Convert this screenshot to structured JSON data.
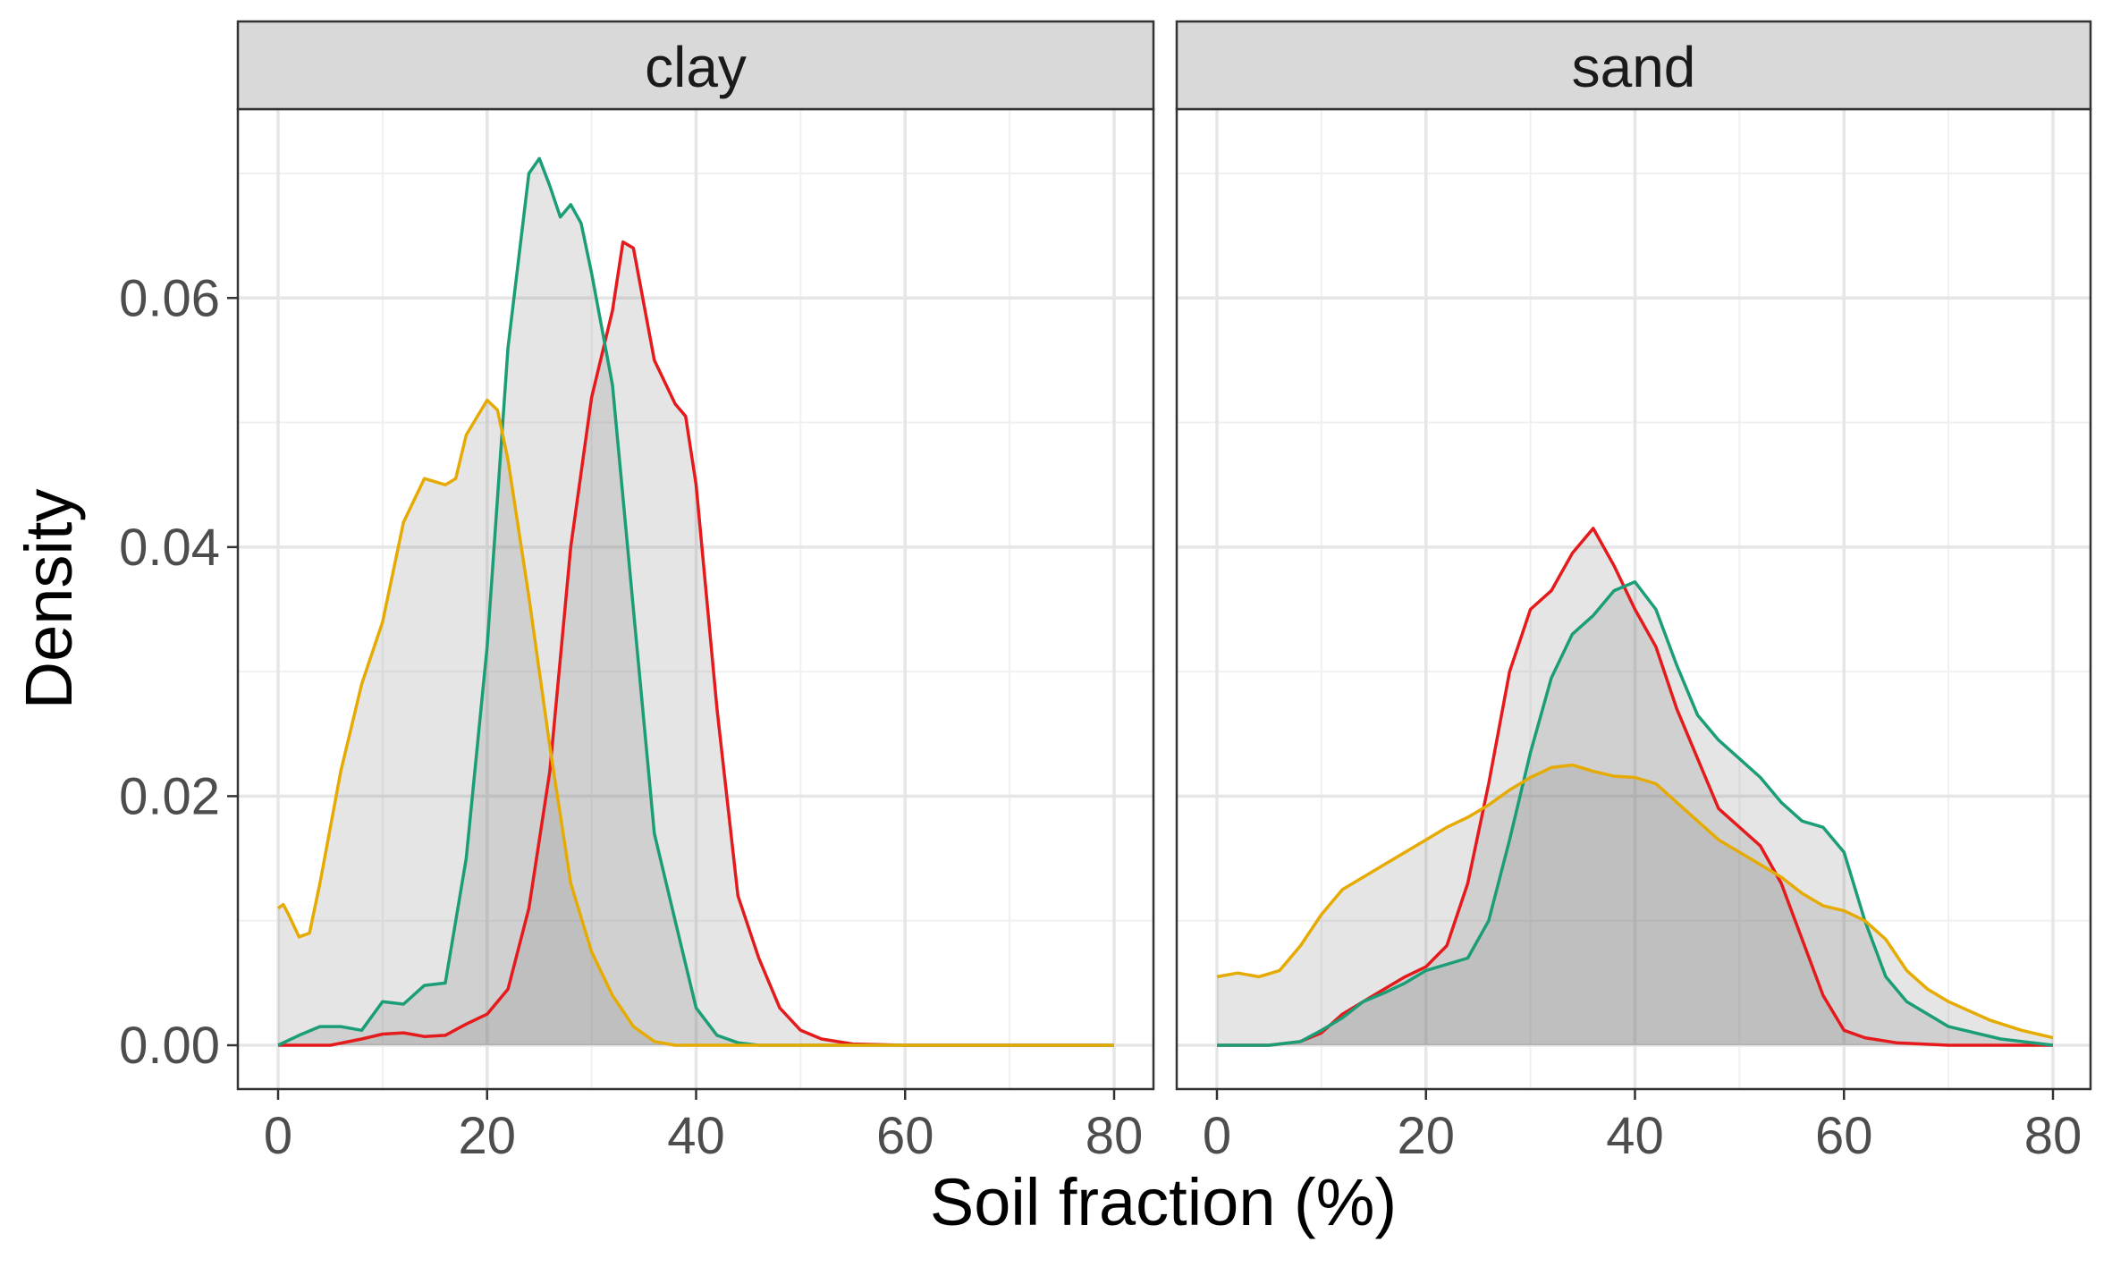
{
  "chart_data": {
    "type": "area",
    "xlabel": "Soil fraction (%)",
    "ylabel": "Density",
    "xlim": [
      0,
      80
    ],
    "ylim": [
      0,
      0.072
    ],
    "x_ticks": [
      0,
      20,
      40,
      60,
      80
    ],
    "x_tick_labels": [
      "0",
      "20",
      "40",
      "60",
      "80"
    ],
    "y_ticks": [
      0,
      0.02,
      0.04,
      0.06
    ],
    "y_tick_labels": [
      "0.00",
      "0.02",
      "0.04",
      "0.06"
    ],
    "grid": true,
    "legend": "none",
    "fill_color": "#7f7f7f",
    "fill_opacity": 0.2,
    "series_colors": [
      "#e41a1c",
      "#1b9e77",
      "#e6ab02"
    ],
    "panels": [
      {
        "strip_label": "clay",
        "series": [
          {
            "color": "#e41a1c",
            "points": [
              [
                0,
                0
              ],
              [
                5,
                0
              ],
              [
                8,
                0.0005
              ],
              [
                10,
                0.0009
              ],
              [
                12,
                0.001
              ],
              [
                14,
                0.0007
              ],
              [
                16,
                0.0008
              ],
              [
                18,
                0.0017
              ],
              [
                20,
                0.0025
              ],
              [
                22,
                0.0045
              ],
              [
                24,
                0.011
              ],
              [
                26,
                0.022
              ],
              [
                28,
                0.04
              ],
              [
                30,
                0.052
              ],
              [
                32,
                0.059
              ],
              [
                33,
                0.0645
              ],
              [
                34,
                0.064
              ],
              [
                36,
                0.055
              ],
              [
                38,
                0.0515
              ],
              [
                39,
                0.0505
              ],
              [
                40,
                0.045
              ],
              [
                42,
                0.027
              ],
              [
                44,
                0.012
              ],
              [
                46,
                0.007
              ],
              [
                48,
                0.003
              ],
              [
                50,
                0.0012
              ],
              [
                52,
                0.0005
              ],
              [
                55,
                0.0001
              ],
              [
                60,
                0
              ],
              [
                80,
                0
              ]
            ]
          },
          {
            "color": "#1b9e77",
            "points": [
              [
                0,
                0
              ],
              [
                2,
                0.0008
              ],
              [
                4,
                0.0015
              ],
              [
                6,
                0.0015
              ],
              [
                8,
                0.0012
              ],
              [
                10,
                0.0035
              ],
              [
                12,
                0.0033
              ],
              [
                14,
                0.0048
              ],
              [
                16,
                0.005
              ],
              [
                18,
                0.015
              ],
              [
                20,
                0.032
              ],
              [
                22,
                0.056
              ],
              [
                24,
                0.07
              ],
              [
                25,
                0.0712
              ],
              [
                26,
                0.069
              ],
              [
                27,
                0.0665
              ],
              [
                28,
                0.0675
              ],
              [
                29,
                0.066
              ],
              [
                30,
                0.062
              ],
              [
                32,
                0.053
              ],
              [
                34,
                0.035
              ],
              [
                36,
                0.017
              ],
              [
                38,
                0.01
              ],
              [
                40,
                0.003
              ],
              [
                42,
                0.0008
              ],
              [
                44,
                0.0002
              ],
              [
                46,
                0
              ],
              [
                80,
                0
              ]
            ]
          },
          {
            "color": "#e6ab02",
            "points": [
              [
                0,
                0.011
              ],
              [
                0.5,
                0.0113
              ],
              [
                1,
                0.0105
              ],
              [
                2,
                0.0087
              ],
              [
                3,
                0.009
              ],
              [
                4,
                0.013
              ],
              [
                6,
                0.022
              ],
              [
                8,
                0.029
              ],
              [
                10,
                0.034
              ],
              [
                12,
                0.042
              ],
              [
                14,
                0.0455
              ],
              [
                16,
                0.045
              ],
              [
                17,
                0.0455
              ],
              [
                18,
                0.049
              ],
              [
                20,
                0.0518
              ],
              [
                21,
                0.051
              ],
              [
                22,
                0.047
              ],
              [
                24,
                0.036
              ],
              [
                26,
                0.024
              ],
              [
                28,
                0.013
              ],
              [
                30,
                0.0075
              ],
              [
                32,
                0.004
              ],
              [
                34,
                0.0015
              ],
              [
                36,
                0.0003
              ],
              [
                38,
                0
              ],
              [
                80,
                0
              ]
            ]
          }
        ]
      },
      {
        "strip_label": "sand",
        "series": [
          {
            "color": "#e41a1c",
            "points": [
              [
                0,
                0
              ],
              [
                5,
                0
              ],
              [
                8,
                0.0003
              ],
              [
                10,
                0.001
              ],
              [
                12,
                0.0025
              ],
              [
                14,
                0.0035
              ],
              [
                16,
                0.0045
              ],
              [
                18,
                0.0055
              ],
              [
                20,
                0.0063
              ],
              [
                22,
                0.008
              ],
              [
                24,
                0.013
              ],
              [
                26,
                0.021
              ],
              [
                28,
                0.03
              ],
              [
                30,
                0.035
              ],
              [
                32,
                0.0365
              ],
              [
                34,
                0.0395
              ],
              [
                36,
                0.0415
              ],
              [
                38,
                0.0385
              ],
              [
                40,
                0.035
              ],
              [
                42,
                0.032
              ],
              [
                44,
                0.027
              ],
              [
                46,
                0.023
              ],
              [
                48,
                0.019
              ],
              [
                50,
                0.0175
              ],
              [
                52,
                0.016
              ],
              [
                54,
                0.013
              ],
              [
                56,
                0.0085
              ],
              [
                58,
                0.004
              ],
              [
                60,
                0.0012
              ],
              [
                62,
                0.0006
              ],
              [
                65,
                0.0002
              ],
              [
                70,
                0
              ],
              [
                80,
                0
              ]
            ]
          },
          {
            "color": "#1b9e77",
            "points": [
              [
                0,
                0
              ],
              [
                5,
                0
              ],
              [
                8,
                0.0003
              ],
              [
                10,
                0.0012
              ],
              [
                12,
                0.0022
              ],
              [
                14,
                0.0035
              ],
              [
                16,
                0.0042
              ],
              [
                18,
                0.005
              ],
              [
                20,
                0.006
              ],
              [
                22,
                0.0065
              ],
              [
                24,
                0.007
              ],
              [
                26,
                0.01
              ],
              [
                28,
                0.0165
              ],
              [
                30,
                0.0235
              ],
              [
                32,
                0.0295
              ],
              [
                34,
                0.033
              ],
              [
                36,
                0.0345
              ],
              [
                38,
                0.0365
              ],
              [
                40,
                0.0372
              ],
              [
                42,
                0.035
              ],
              [
                44,
                0.0305
              ],
              [
                46,
                0.0265
              ],
              [
                48,
                0.0245
              ],
              [
                50,
                0.023
              ],
              [
                52,
                0.0215
              ],
              [
                54,
                0.0195
              ],
              [
                56,
                0.018
              ],
              [
                58,
                0.0175
              ],
              [
                60,
                0.0155
              ],
              [
                62,
                0.01
              ],
              [
                64,
                0.0055
              ],
              [
                66,
                0.0035
              ],
              [
                70,
                0.0015
              ],
              [
                75,
                0.0005
              ],
              [
                80,
                0
              ]
            ]
          },
          {
            "color": "#e6ab02",
            "points": [
              [
                0,
                0.0055
              ],
              [
                2,
                0.0058
              ],
              [
                4,
                0.0055
              ],
              [
                6,
                0.006
              ],
              [
                8,
                0.008
              ],
              [
                10,
                0.0105
              ],
              [
                12,
                0.0125
              ],
              [
                14,
                0.0135
              ],
              [
                16,
                0.0145
              ],
              [
                18,
                0.0155
              ],
              [
                20,
                0.0165
              ],
              [
                22,
                0.0175
              ],
              [
                24,
                0.0183
              ],
              [
                26,
                0.0193
              ],
              [
                28,
                0.0205
              ],
              [
                30,
                0.0215
              ],
              [
                32,
                0.0223
              ],
              [
                34,
                0.0225
              ],
              [
                36,
                0.022
              ],
              [
                38,
                0.0216
              ],
              [
                40,
                0.0215
              ],
              [
                42,
                0.021
              ],
              [
                44,
                0.0195
              ],
              [
                46,
                0.018
              ],
              [
                48,
                0.0165
              ],
              [
                50,
                0.0155
              ],
              [
                52,
                0.0145
              ],
              [
                54,
                0.0135
              ],
              [
                56,
                0.0122
              ],
              [
                58,
                0.0112
              ],
              [
                60,
                0.0108
              ],
              [
                62,
                0.01
              ],
              [
                64,
                0.0085
              ],
              [
                66,
                0.006
              ],
              [
                68,
                0.0045
              ],
              [
                70,
                0.0035
              ],
              [
                74,
                0.002
              ],
              [
                77,
                0.0012
              ],
              [
                80,
                0.0006
              ]
            ]
          }
        ]
      }
    ]
  }
}
